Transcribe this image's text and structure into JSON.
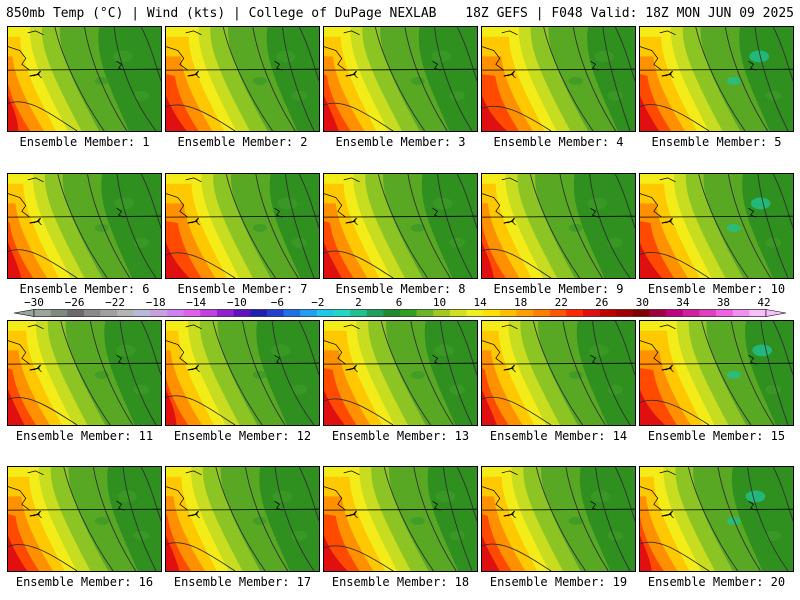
{
  "header": {
    "left_title": "850mb Temp (°C) | Wind (kts) | College of DuPage NEXLAB",
    "right_title": "18Z GEFS | F048 Valid: 18Z MON JUN 09 2025"
  },
  "members": [
    {
      "label": "Ensemble Member: 1"
    },
    {
      "label": "Ensemble Member: 2"
    },
    {
      "label": "Ensemble Member: 3"
    },
    {
      "label": "Ensemble Member: 4"
    },
    {
      "label": "Ensemble Member: 5"
    },
    {
      "label": "Ensemble Member: 6"
    },
    {
      "label": "Ensemble Member: 7"
    },
    {
      "label": "Ensemble Member: 8"
    },
    {
      "label": "Ensemble Member: 9"
    },
    {
      "label": "Ensemble Member: 10"
    },
    {
      "label": "Ensemble Member: 11"
    },
    {
      "label": "Ensemble Member: 12"
    },
    {
      "label": "Ensemble Member: 13"
    },
    {
      "label": "Ensemble Member: 14"
    },
    {
      "label": "Ensemble Member: 15"
    },
    {
      "label": "Ensemble Member: 16"
    },
    {
      "label": "Ensemble Member: 17"
    },
    {
      "label": "Ensemble Member: 18"
    },
    {
      "label": "Ensemble Member: 19"
    },
    {
      "label": "Ensemble Member: 20"
    }
  ],
  "colorbar": {
    "tick_labels": [
      "−30",
      "−26",
      "−22",
      "−18",
      "−14",
      "−10",
      "−6",
      "−2",
      "2",
      "6",
      "10",
      "14",
      "18",
      "22",
      "26",
      "30",
      "34",
      "38",
      "42"
    ],
    "colors": [
      "#9aa59a",
      "#7f8a7f",
      "#6b6b6b",
      "#8a8a8a",
      "#a0a0a0",
      "#b4b4b4",
      "#b8b8d8",
      "#c8a0e0",
      "#d080f0",
      "#e060e8",
      "#c040e0",
      "#9020d0",
      "#6010c0",
      "#2020b0",
      "#2040d0",
      "#2070e8",
      "#20a0f0",
      "#20c8e8",
      "#20d8c8",
      "#20c090",
      "#20a060",
      "#208a30",
      "#30a020",
      "#6cb428",
      "#a0c820",
      "#d0e020",
      "#f0f020",
      "#ffe000",
      "#ffc000",
      "#ffa000",
      "#ff8000",
      "#ff5a00",
      "#ff2a00",
      "#e01010",
      "#c00000",
      "#a00000",
      "#800000",
      "#a00040",
      "#c00080",
      "#d020a0",
      "#e040c0",
      "#f060e0",
      "#f090f0",
      "#f8c0f8"
    ]
  }
}
